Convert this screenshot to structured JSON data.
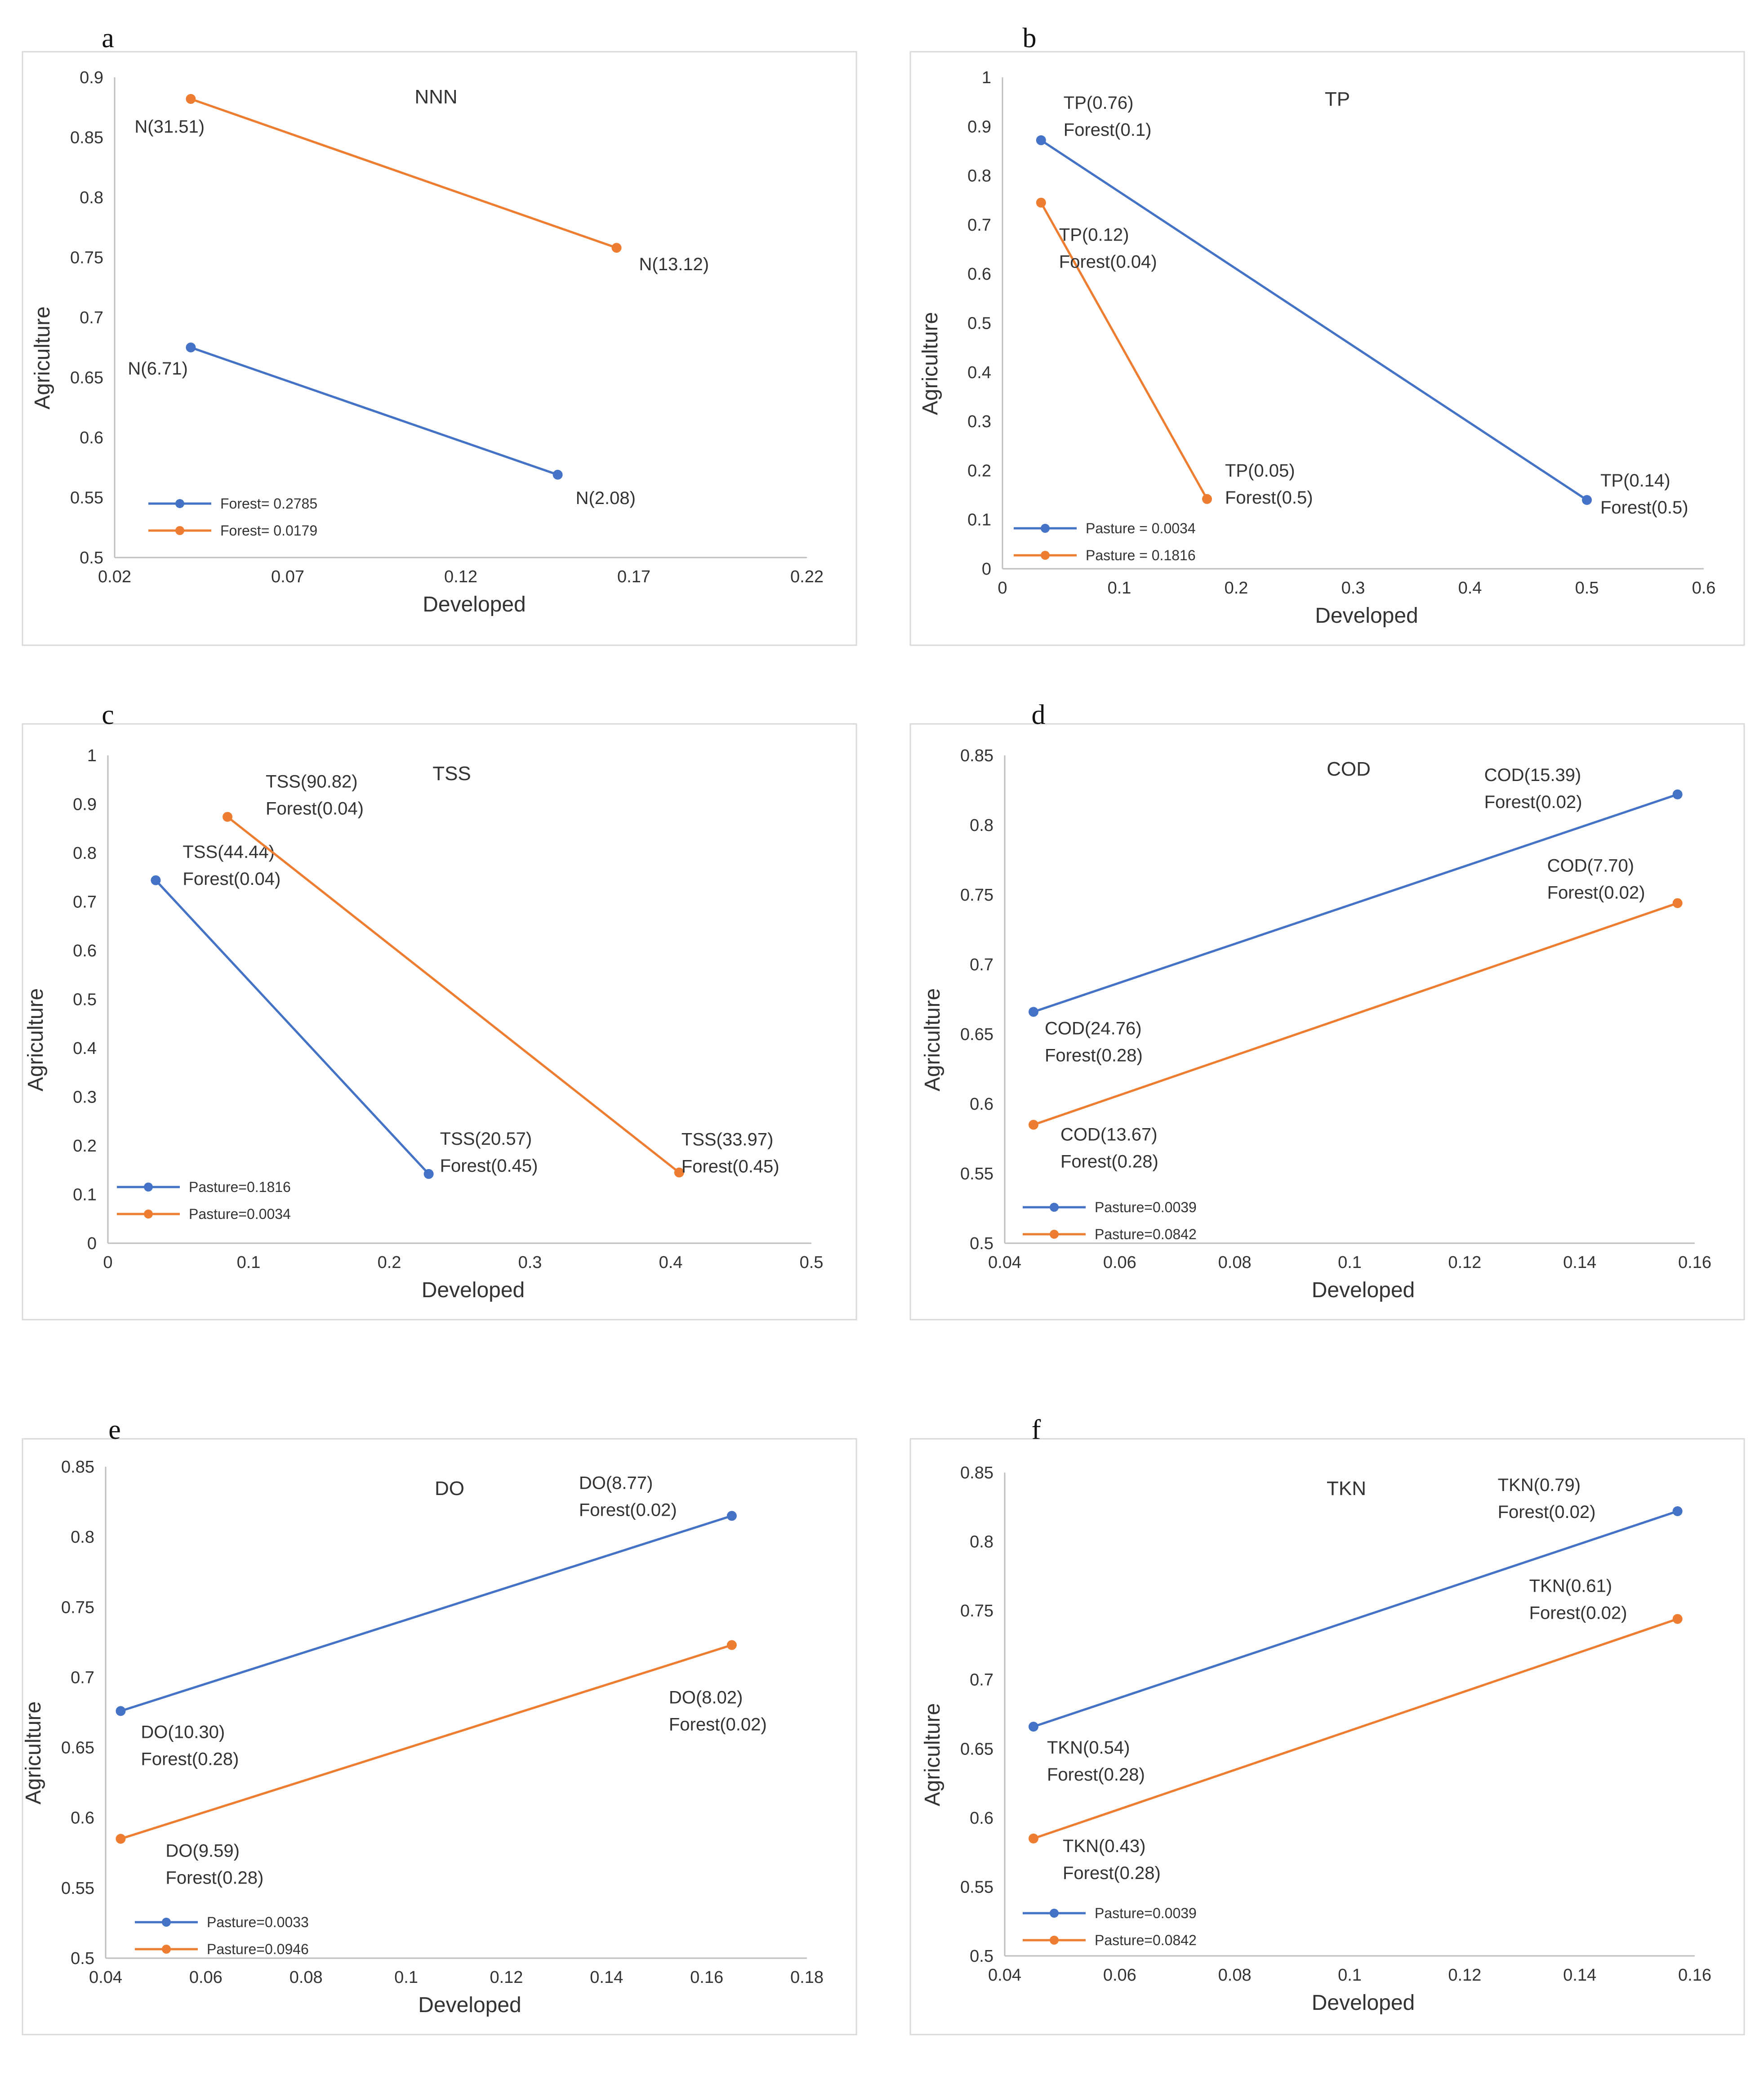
{
  "colors": {
    "series1": "#4472c4",
    "series2": "#ed7d31",
    "frame": "#d9d9d9",
    "axis": "#bfbfbf"
  },
  "chart_data": [
    {
      "type": "line",
      "panel": "a",
      "title": "NNN",
      "xlabel": "Developed",
      "ylabel": "Agriculture",
      "xlim": [
        0.02,
        0.22
      ],
      "ylim": [
        0.5,
        0.9
      ],
      "xticks": [
        "0.02",
        "0.07",
        "0.12",
        "0.17",
        "0.22"
      ],
      "yticks": [
        "0.5",
        "0.55",
        "0.6",
        "0.65",
        "0.7",
        "0.75",
        "0.8",
        "0.85",
        "0.9"
      ],
      "series": [
        {
          "name": "Forest= 0.2785",
          "color": "#4472c4",
          "points": [
            {
              "x": 0.042,
              "y": 0.675,
              "labels": [
                "N(6.71)"
              ]
            },
            {
              "x": 0.148,
              "y": 0.569,
              "labels": [
                "N(2.08)"
              ]
            }
          ]
        },
        {
          "name": "Forest= 0.0179",
          "color": "#ed7d31",
          "points": [
            {
              "x": 0.042,
              "y": 0.882,
              "labels": [
                "N(31.51)"
              ]
            },
            {
              "x": 0.165,
              "y": 0.758,
              "labels": [
                "N(13.12)"
              ]
            }
          ]
        }
      ]
    },
    {
      "type": "line",
      "panel": "b",
      "title": "TP",
      "xlabel": "Developed",
      "ylabel": "Agriculture",
      "xlim": [
        0,
        0.6
      ],
      "ylim": [
        0,
        1
      ],
      "xticks": [
        "0",
        "0.1",
        "0.2",
        "0.3",
        "0.4",
        "0.5",
        "0.6"
      ],
      "yticks": [
        "0",
        "0.1",
        "0.2",
        "0.3",
        "0.4",
        "0.5",
        "0.6",
        "0.7",
        "0.8",
        "0.9",
        "1"
      ],
      "series": [
        {
          "name": "Pasture = 0.0034",
          "color": "#4472c4",
          "points": [
            {
              "x": 0.033,
              "y": 0.872,
              "labels": [
                "TP(0.76)",
                "Forest(0.1)"
              ]
            },
            {
              "x": 0.5,
              "y": 0.14,
              "labels": [
                "TP(0.14)",
                "Forest(0.5)"
              ]
            }
          ]
        },
        {
          "name": "Pasture = 0.1816",
          "color": "#ed7d31",
          "points": [
            {
              "x": 0.033,
              "y": 0.745,
              "labels": [
                "TP(0.12)",
                "Forest(0.04)"
              ]
            },
            {
              "x": 0.175,
              "y": 0.142,
              "labels": [
                "TP(0.05)",
                "Forest(0.5)"
              ]
            }
          ]
        }
      ]
    },
    {
      "type": "line",
      "panel": "c",
      "title": "TSS",
      "xlabel": "Developed",
      "ylabel": "Agriculture",
      "xlim": [
        0,
        0.5
      ],
      "ylim": [
        0,
        1
      ],
      "xticks": [
        "0",
        "0.1",
        "0.2",
        "0.3",
        "0.4",
        "0.5"
      ],
      "yticks": [
        "0",
        "0.1",
        "0.2",
        "0.3",
        "0.4",
        "0.5",
        "0.6",
        "0.7",
        "0.8",
        "0.9",
        "1"
      ],
      "series": [
        {
          "name": "Pasture=0.1816",
          "color": "#4472c4",
          "points": [
            {
              "x": 0.034,
              "y": 0.744,
              "labels": [
                "TSS(44.44)",
                "Forest(0.04)"
              ]
            },
            {
              "x": 0.228,
              "y": 0.142,
              "labels": [
                "TSS(20.57)",
                "Forest(0.45)"
              ]
            }
          ]
        },
        {
          "name": "Pasture=0.0034",
          "color": "#ed7d31",
          "points": [
            {
              "x": 0.085,
              "y": 0.874,
              "labels": [
                "TSS(90.82)",
                "Forest(0.04)"
              ]
            },
            {
              "x": 0.406,
              "y": 0.145,
              "labels": [
                "TSS(33.97)",
                "Forest(0.45)"
              ]
            }
          ]
        }
      ]
    },
    {
      "type": "line",
      "panel": "d",
      "title": "COD",
      "xlabel": "Developed",
      "ylabel": "Agriculture",
      "xlim": [
        0.04,
        0.16
      ],
      "ylim": [
        0.5,
        0.85
      ],
      "xticks": [
        "0.04",
        "0.06",
        "0.08",
        "0.1",
        "0.12",
        "0.14",
        "0.16"
      ],
      "yticks": [
        "0.5",
        "0.55",
        "0.6",
        "0.65",
        "0.7",
        "0.75",
        "0.8",
        "0.85"
      ],
      "series": [
        {
          "name": "Pasture=0.0039",
          "color": "#4472c4",
          "points": [
            {
              "x": 0.045,
              "y": 0.666,
              "labels": [
                "COD(24.76)",
                "Forest(0.28)"
              ]
            },
            {
              "x": 0.157,
              "y": 0.822,
              "labels": [
                "COD(15.39)",
                "Forest(0.02)"
              ]
            }
          ]
        },
        {
          "name": "Pasture=0.0842",
          "color": "#ed7d31",
          "points": [
            {
              "x": 0.045,
              "y": 0.585,
              "labels": [
                "COD(13.67)",
                "Forest(0.28)"
              ]
            },
            {
              "x": 0.157,
              "y": 0.744,
              "labels": [
                "COD(7.70)",
                "Forest(0.02)"
              ]
            }
          ]
        }
      ]
    },
    {
      "type": "line",
      "panel": "e",
      "title": "DO",
      "xlabel": "Developed",
      "ylabel": "Agriculture",
      "xlim": [
        0.04,
        0.18
      ],
      "ylim": [
        0.5,
        0.85
      ],
      "xticks": [
        "0.04",
        "0.06",
        "0.08",
        "0.1",
        "0.12",
        "0.14",
        "0.16",
        "0.18"
      ],
      "yticks": [
        "0.5",
        "0.55",
        "0.6",
        "0.65",
        "0.7",
        "0.75",
        "0.8",
        "0.85"
      ],
      "series": [
        {
          "name": "Pasture=0.0033",
          "color": "#4472c4",
          "points": [
            {
              "x": 0.043,
              "y": 0.676,
              "labels": [
                "DO(10.30)",
                "Forest(0.28)"
              ]
            },
            {
              "x": 0.165,
              "y": 0.815,
              "labels": [
                "DO(8.77)",
                "Forest(0.02)"
              ]
            }
          ]
        },
        {
          "name": "Pasture=0.0946",
          "color": "#ed7d31",
          "points": [
            {
              "x": 0.043,
              "y": 0.585,
              "labels": [
                "DO(9.59)",
                "Forest(0.28)"
              ]
            },
            {
              "x": 0.165,
              "y": 0.723,
              "labels": [
                "DO(8.02)",
                "Forest(0.02)"
              ]
            }
          ]
        }
      ]
    },
    {
      "type": "line",
      "panel": "f",
      "title": "TKN",
      "xlabel": "Developed",
      "ylabel": "Agriculture",
      "xlim": [
        0.04,
        0.16
      ],
      "ylim": [
        0.5,
        0.85
      ],
      "xticks": [
        "0.04",
        "0.06",
        "0.08",
        "0.1",
        "0.12",
        "0.14",
        "0.16"
      ],
      "yticks": [
        "0.5",
        "0.55",
        "0.6",
        "0.65",
        "0.7",
        "0.75",
        "0.8",
        "0.85"
      ],
      "series": [
        {
          "name": "Pasture=0.0039",
          "color": "#4472c4",
          "points": [
            {
              "x": 0.045,
              "y": 0.666,
              "labels": [
                "TKN(0.54)",
                "Forest(0.28)"
              ]
            },
            {
              "x": 0.157,
              "y": 0.822,
              "labels": [
                "TKN(0.79)",
                "Forest(0.02)"
              ]
            }
          ]
        },
        {
          "name": "Pasture=0.0842",
          "color": "#ed7d31",
          "points": [
            {
              "x": 0.045,
              "y": 0.585,
              "labels": [
                "TKN(0.43)",
                "Forest(0.28)"
              ]
            },
            {
              "x": 0.157,
              "y": 0.744,
              "labels": [
                "TKN(0.61)",
                "Forest(0.02)"
              ]
            }
          ]
        }
      ]
    }
  ]
}
